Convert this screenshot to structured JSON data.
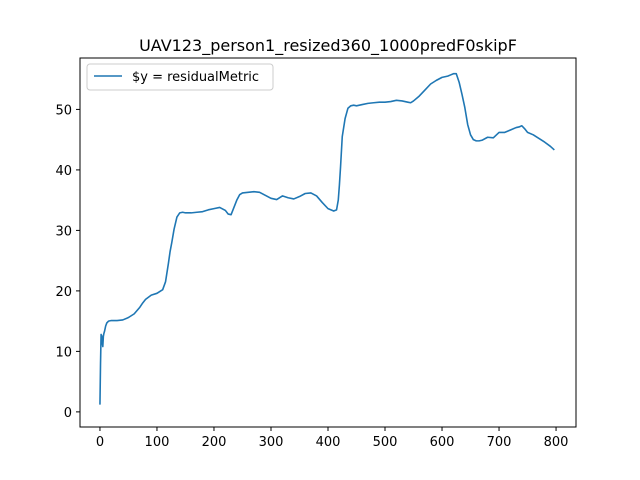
{
  "chart_data": {
    "type": "line",
    "title": "UAV123_person1_resized360_1000predF0skipF",
    "xlabel": "",
    "ylabel": "",
    "xlim": [
      -35,
      835
    ],
    "ylim": [
      -2.5,
      58.5
    ],
    "xticks": [
      0,
      100,
      200,
      300,
      400,
      500,
      600,
      700,
      800
    ],
    "yticks": [
      0,
      10,
      20,
      30,
      40,
      50
    ],
    "grid": false,
    "legend_position": "upper left",
    "series": [
      {
        "name": "$y = residualMetric",
        "color": "#1f77b4",
        "x": [
          0,
          1,
          2,
          3,
          4,
          5,
          6,
          7,
          8,
          10,
          12,
          15,
          20,
          25,
          30,
          40,
          50,
          60,
          70,
          75,
          80,
          90,
          100,
          110,
          115,
          120,
          123,
          126,
          130,
          135,
          140,
          145,
          150,
          160,
          170,
          180,
          190,
          200,
          210,
          220,
          225,
          230,
          235,
          240,
          245,
          250,
          260,
          270,
          280,
          290,
          300,
          310,
          320,
          330,
          340,
          350,
          360,
          370,
          380,
          390,
          400,
          410,
          415,
          418,
          420,
          422,
          425,
          430,
          435,
          440,
          445,
          450,
          460,
          470,
          480,
          490,
          500,
          510,
          520,
          530,
          540,
          545,
          550,
          560,
          570,
          580,
          590,
          600,
          605,
          610,
          615,
          620,
          625,
          630,
          635,
          640,
          645,
          650,
          655,
          660,
          665,
          670,
          680,
          690,
          700,
          710,
          720,
          730,
          735,
          740,
          745,
          750,
          760,
          770,
          780,
          790,
          797
        ],
        "y": [
          1.2,
          8,
          12.8,
          12.6,
          11.5,
          10.8,
          12.5,
          13,
          13.3,
          14.2,
          14.7,
          15,
          15.1,
          15.1,
          15.1,
          15.2,
          15.6,
          16.2,
          17.3,
          18,
          18.6,
          19.3,
          19.6,
          20.2,
          21.5,
          24.5,
          26.5,
          28,
          30.2,
          32.2,
          32.9,
          33,
          32.9,
          32.9,
          33,
          33.1,
          33.4,
          33.6,
          33.8,
          33.3,
          32.7,
          32.6,
          33.8,
          35,
          35.9,
          36.2,
          36.3,
          36.4,
          36.3,
          35.8,
          35.3,
          35.1,
          35.7,
          35.4,
          35.2,
          35.6,
          36.1,
          36.2,
          35.7,
          34.6,
          33.6,
          33.2,
          33.4,
          35,
          37.5,
          40.5,
          45.5,
          48.5,
          50.2,
          50.6,
          50.7,
          50.6,
          50.8,
          51,
          51.1,
          51.2,
          51.2,
          51.3,
          51.5,
          51.4,
          51.2,
          51.1,
          51.4,
          52.2,
          53.2,
          54.2,
          54.8,
          55.3,
          55.4,
          55.5,
          55.7,
          55.9,
          55.9,
          54.5,
          52.5,
          50.3,
          47.5,
          45.8,
          45,
          44.8,
          44.8,
          44.9,
          45.4,
          45.3,
          46.2,
          46.2,
          46.6,
          47,
          47.1,
          47.3,
          46.8,
          46.2,
          45.8,
          45.2,
          44.6,
          43.9,
          43.3
        ]
      }
    ]
  }
}
